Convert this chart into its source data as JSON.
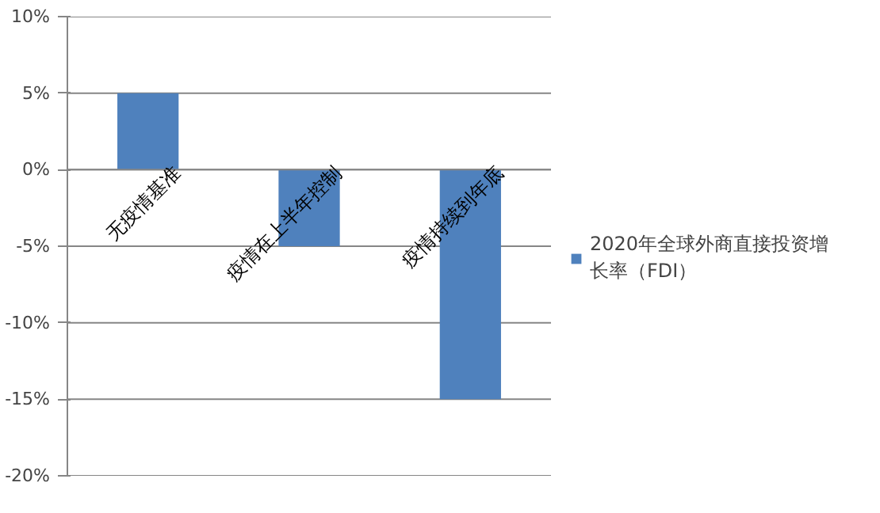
{
  "chart_data": {
    "type": "bar",
    "categories": [
      "无疫情基准",
      "疫情在上半年控制",
      "疫情持续到年底"
    ],
    "series": [
      {
        "name": "2020年全球外商直接投资增长率（FDI）",
        "color": "#4f81bd",
        "values": [
          5,
          -5,
          -15
        ]
      }
    ],
    "ylim": [
      -20,
      10
    ],
    "yticks": [
      {
        "value": -20,
        "label": "-20%"
      },
      {
        "value": -15,
        "label": "-15%"
      },
      {
        "value": -10,
        "label": "-10%"
      },
      {
        "value": -5,
        "label": "-5%"
      },
      {
        "value": 0,
        "label": "0%"
      },
      {
        "value": 5,
        "label": "5%"
      },
      {
        "value": 10,
        "label": "10%"
      }
    ],
    "grid": "y",
    "legend": "right"
  }
}
